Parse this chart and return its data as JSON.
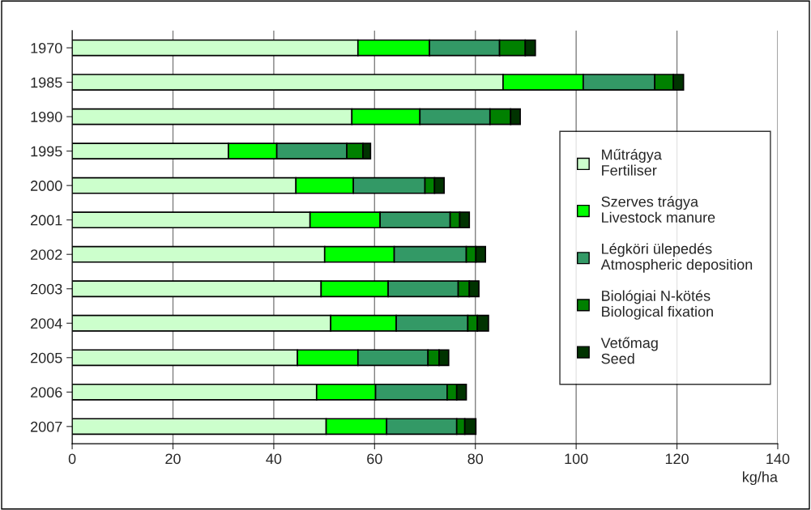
{
  "chart_data": {
    "type": "bar",
    "orientation": "horizontal",
    "stacked": true,
    "xlabel": "kg/ha",
    "categories": [
      "1970",
      "1985",
      "1990",
      "1995",
      "2000",
      "2001",
      "2002",
      "2003",
      "2004",
      "2005",
      "2006",
      "2007"
    ],
    "series": [
      {
        "name": "Műtrágya\nFertiliser",
        "color": "#ccffcc",
        "values": [
          56.7,
          85.5,
          55.5,
          31.0,
          44.4,
          47.2,
          50.1,
          49.4,
          51.3,
          44.7,
          48.5,
          50.4
        ]
      },
      {
        "name": "Szerves trágya\nLivestock manure",
        "color": "#00ff00",
        "values": [
          14.2,
          15.9,
          13.5,
          9.6,
          11.4,
          13.9,
          13.8,
          13.3,
          13.0,
          12.0,
          11.7,
          12.0
        ]
      },
      {
        "name": "Légköri ülepedés\nAtmospheric deposition",
        "color": "#339966",
        "values": [
          13.9,
          14.2,
          13.9,
          13.9,
          14.2,
          13.9,
          14.3,
          13.9,
          14.2,
          13.9,
          14.2,
          13.9
        ]
      },
      {
        "name": "Biológiai N-kötés\nBiological fixation",
        "color": "#008000",
        "values": [
          5.1,
          3.7,
          4.1,
          3.2,
          1.9,
          1.9,
          1.9,
          2.2,
          1.9,
          2.2,
          1.9,
          1.6
        ]
      },
      {
        "name": "Vetőmag\nSeed",
        "color": "#003300",
        "values": [
          2.0,
          2.0,
          1.9,
          1.5,
          1.9,
          1.9,
          1.9,
          1.9,
          2.2,
          1.9,
          1.9,
          2.2
        ]
      }
    ],
    "xlim": [
      0,
      140
    ],
    "xticks": [
      0,
      20,
      40,
      60,
      80,
      100,
      120,
      140
    ],
    "grid": "x",
    "legend": "right"
  }
}
